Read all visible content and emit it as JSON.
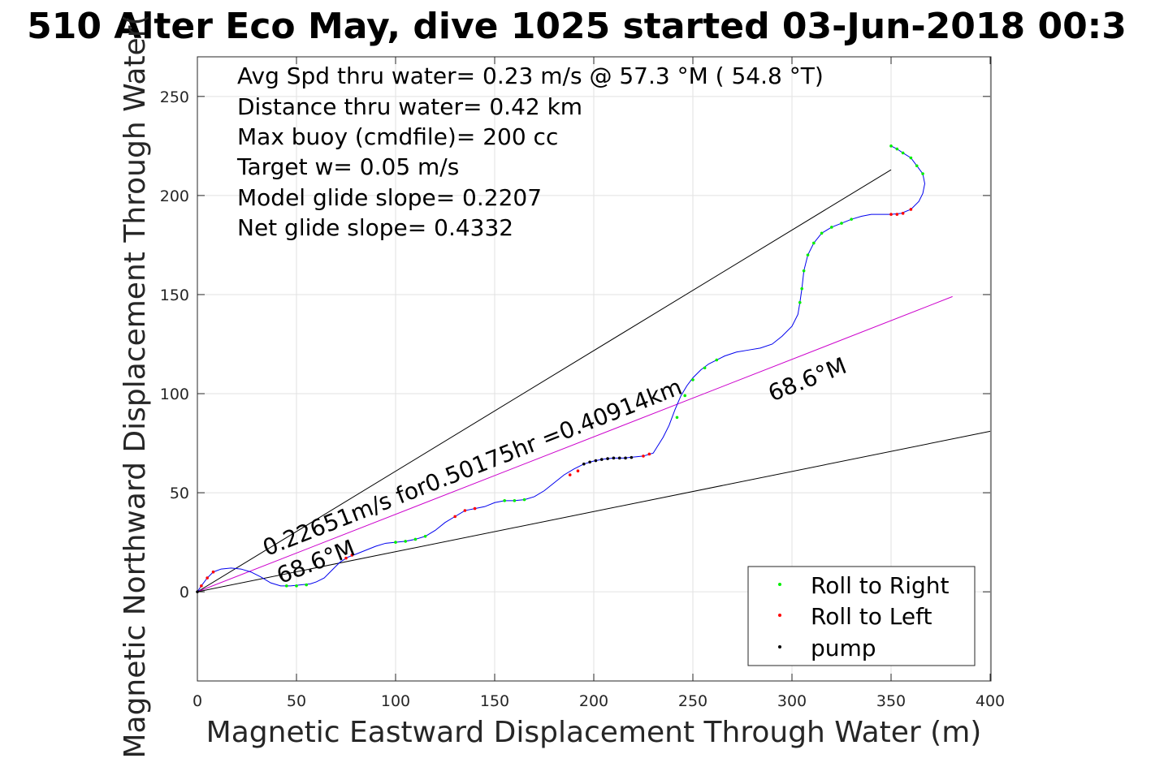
{
  "chart_data": {
    "type": "scatter",
    "title": "510 Alter Eco May, dive 1025 started 03-Jun-2018 00:3",
    "xlabel": "Magnetic Eastward Displacement Through Water (m)",
    "ylabel": "Magnetic Northward Displacement Through Water(",
    "xlim": [
      0,
      400
    ],
    "ylim": [
      -45,
      270
    ],
    "grid": true,
    "x_ticks": [
      "0",
      "50",
      "100",
      "150",
      "200",
      "250",
      "300",
      "350",
      "400"
    ],
    "y_ticks": [
      "0",
      "50",
      "100",
      "150",
      "200",
      "250"
    ],
    "info_lines": [
      "Avg Spd thru water=  0.23 m/s @  57.3 °M ( 54.8 °T)",
      "Distance thru water=  0.42 km",
      "Max buoy (cmdfile)= 200 cc",
      "Target w= 0.05 m/s",
      "Model glide slope= 0.2207",
      "Net glide slope= 0.4332"
    ],
    "annotations": [
      {
        "text": "0.22651m/s for0.50175hr =0.40914km",
        "x": 35,
        "y": 18,
        "angle_deg": 21.4
      },
      {
        "text": "68.6°M",
        "x": 42,
        "y": 4,
        "angle_deg": 21.4
      },
      {
        "text": "68.6°M",
        "x": 290,
        "y": 96,
        "angle_deg": 21.4
      }
    ],
    "legend": {
      "placement": "bottom-right",
      "entries": [
        {
          "label": "Roll to Right",
          "color": "#00ee00"
        },
        {
          "label": "Roll to Left",
          "color": "#ff0000"
        },
        {
          "label": "pump",
          "color": "#000000"
        }
      ]
    },
    "reference_lines": [
      {
        "name": "upper bound",
        "color": "#000000",
        "x": [
          0,
          350
        ],
        "y": [
          0,
          213
        ]
      },
      {
        "name": "heading 68.6°M",
        "color": "#cc00cc",
        "x": [
          0,
          381
        ],
        "y": [
          0,
          149
        ]
      },
      {
        "name": "lower bound",
        "color": "#000000",
        "x": [
          0,
          400
        ],
        "y": [
          0,
          81
        ]
      }
    ],
    "track": {
      "color": "#0000ee",
      "x": [
        0,
        2,
        5,
        8,
        12,
        17,
        22,
        27,
        32,
        37,
        42,
        47,
        52,
        57,
        60,
        64,
        68,
        72,
        76,
        80,
        85,
        90,
        95,
        100,
        105,
        110,
        115,
        120,
        125,
        130,
        135,
        140,
        145,
        150,
        155,
        160,
        165,
        170,
        175,
        180,
        185,
        190,
        195,
        200,
        205,
        210,
        215,
        220,
        225,
        230,
        235,
        238,
        241,
        244,
        247,
        250,
        254,
        258,
        262,
        266,
        272,
        278,
        284,
        290,
        295,
        300,
        303,
        304,
        305,
        306,
        308,
        311,
        315,
        320,
        325,
        330,
        335,
        340,
        345,
        350,
        355,
        360,
        364,
        366,
        367,
        366,
        363,
        360,
        356,
        353,
        350
      ],
      "y": [
        0,
        3,
        7,
        10,
        11.5,
        12,
        11.5,
        10,
        7.5,
        4.5,
        3,
        3,
        3.5,
        4,
        5,
        7,
        11,
        15,
        17.5,
        19,
        21,
        23,
        24.5,
        25,
        25.5,
        26.5,
        28,
        31,
        35,
        38,
        41,
        42,
        43,
        45,
        46,
        46,
        46.5,
        48,
        51,
        55,
        59,
        62,
        64.5,
        66,
        67,
        67.5,
        67.5,
        68,
        68.5,
        70,
        78,
        84,
        92,
        99,
        104,
        108,
        112,
        115,
        117,
        119,
        121,
        122,
        123,
        125,
        129,
        134,
        140,
        146,
        153,
        162,
        170,
        176,
        181,
        184,
        186,
        188,
        189.5,
        190.5,
        190.5,
        190.5,
        191,
        193,
        197,
        201,
        206,
        211,
        215,
        219,
        221.5,
        223.5,
        225
      ]
    },
    "markers": {
      "roll_right": {
        "color": "#00ee00",
        "x": [
          45,
          50,
          55,
          100,
          105,
          110,
          115,
          155,
          160,
          165,
          242,
          246,
          250,
          256,
          262,
          304,
          305,
          306,
          308,
          311,
          315,
          320,
          325,
          330,
          350,
          353,
          356,
          360,
          363,
          366
        ],
        "y": [
          3,
          3,
          3.5,
          25,
          25.5,
          26.5,
          28,
          46,
          46,
          46.5,
          88,
          99,
          107,
          113,
          117,
          146,
          153,
          162,
          170,
          176,
          181,
          184,
          186,
          188,
          225,
          223.5,
          221.5,
          219,
          215,
          211
        ]
      },
      "roll_left": {
        "color": "#ff0000",
        "x": [
          2,
          5,
          8,
          75,
          78,
          130,
          135,
          140,
          188,
          192,
          225,
          228,
          350,
          353,
          356,
          360
        ],
        "y": [
          3,
          7,
          10,
          17,
          18.5,
          38,
          41,
          42,
          59,
          61,
          68.5,
          69.5,
          190.5,
          190.5,
          191,
          193
        ]
      },
      "pump": {
        "color": "#000000",
        "x": [
          0,
          195,
          198,
          201,
          204,
          207,
          210,
          213,
          216,
          219
        ],
        "y": [
          0,
          64.5,
          65.5,
          66.2,
          66.8,
          67.2,
          67.5,
          67.5,
          67.5,
          67.8
        ]
      }
    }
  }
}
